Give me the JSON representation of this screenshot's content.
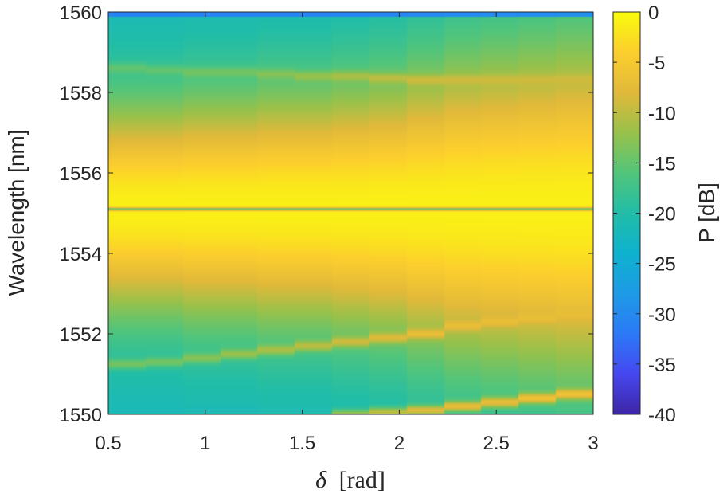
{
  "chart_data": {
    "type": "heatmap",
    "title": "",
    "xlabel_symbol": "δ",
    "xlabel_unit": "[rad]",
    "ylabel": "Wavelength [nm]",
    "colorbar_label": "P [dB]",
    "colormap": "parula",
    "xlim": [
      0.5,
      3
    ],
    "ylim": [
      1550,
      1560
    ],
    "clim": [
      -40,
      0
    ],
    "x_ticks": [
      "0.5",
      "1",
      "1.5",
      "2",
      "2.5",
      "3"
    ],
    "y_ticks": [
      "1550",
      "1552",
      "1554",
      "1556",
      "1558",
      "1560"
    ],
    "colorbar_ticks": [
      "0",
      "-5",
      "-10",
      "-15",
      "-20",
      "-25",
      "-30",
      "-35",
      "-40"
    ],
    "x": [
      0.5,
      0.7,
      0.9,
      1.1,
      1.3,
      1.5,
      1.7,
      1.9,
      2.1,
      2.3,
      2.5,
      2.7,
      2.9
    ],
    "background_level_db": -22,
    "main_peak": {
      "center_nm": 1555.1,
      "peak_db": -1,
      "width_nm": [
        1.9,
        1.9,
        2.0,
        2.0,
        2.1,
        2.1,
        2.2,
        2.3,
        2.5,
        2.7,
        2.8,
        2.9,
        3.0
      ]
    },
    "notch": {
      "wavelength_nm": 1555.1,
      "level_db": -14
    },
    "side_lines": [
      {
        "name": "upper-side-line",
        "wavelength_nm": [
          1551.25,
          1551.3,
          1551.4,
          1551.5,
          1551.6,
          1551.7,
          1551.8,
          1551.9,
          1552.0,
          1552.2,
          1552.3,
          1552.4,
          1552.5
        ],
        "level_db": [
          -14,
          -14,
          -13,
          -12,
          -11,
          -10,
          -9,
          -8,
          -7,
          -7,
          -7,
          -7,
          -7
        ]
      },
      {
        "name": "lower-side-line",
        "wavelength_nm": [
          null,
          null,
          null,
          null,
          null,
          null,
          1550.0,
          1550.05,
          1550.1,
          1550.2,
          1550.3,
          1550.4,
          1550.5
        ],
        "level_db": [
          null,
          null,
          null,
          null,
          null,
          null,
          -12,
          -10,
          -8,
          -7,
          -7,
          -6,
          -6
        ]
      },
      {
        "name": "upper-shoulder-line",
        "wavelength_nm": [
          1558.6,
          1558.55,
          1558.5,
          1558.5,
          1558.45,
          1558.4,
          1558.4,
          1558.35,
          1558.3,
          1558.3,
          1558.3,
          1558.3,
          1558.3
        ],
        "level_db": [
          -15,
          -15,
          -14,
          -14,
          -13,
          -12,
          -11,
          -10,
          -9,
          -9,
          -9,
          -9,
          -9
        ]
      }
    ],
    "top_edge_level_db": -35
  }
}
